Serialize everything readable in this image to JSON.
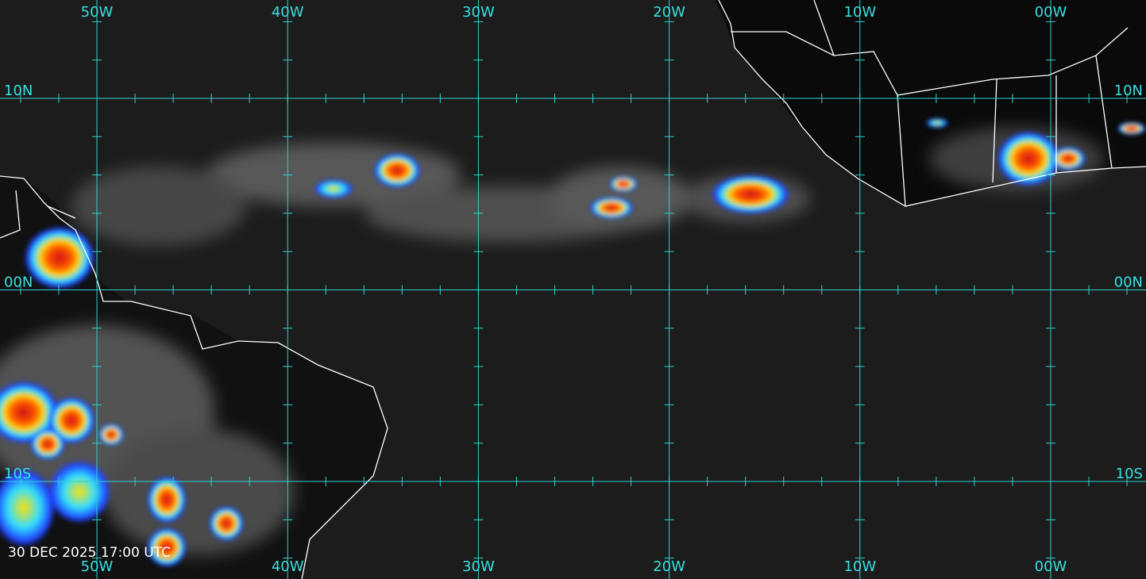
{
  "map": {
    "longitudes": [
      {
        "label": "50W"
      },
      {
        "label": "40W"
      },
      {
        "label": "30W"
      },
      {
        "label": "20W"
      },
      {
        "label": "10W"
      },
      {
        "label": "00W"
      }
    ],
    "latitudes": [
      {
        "label": "10N"
      },
      {
        "label": "00N"
      },
      {
        "label": "10S"
      }
    ],
    "timestamp": "30 DEC 2025 17:00 UTC"
  }
}
